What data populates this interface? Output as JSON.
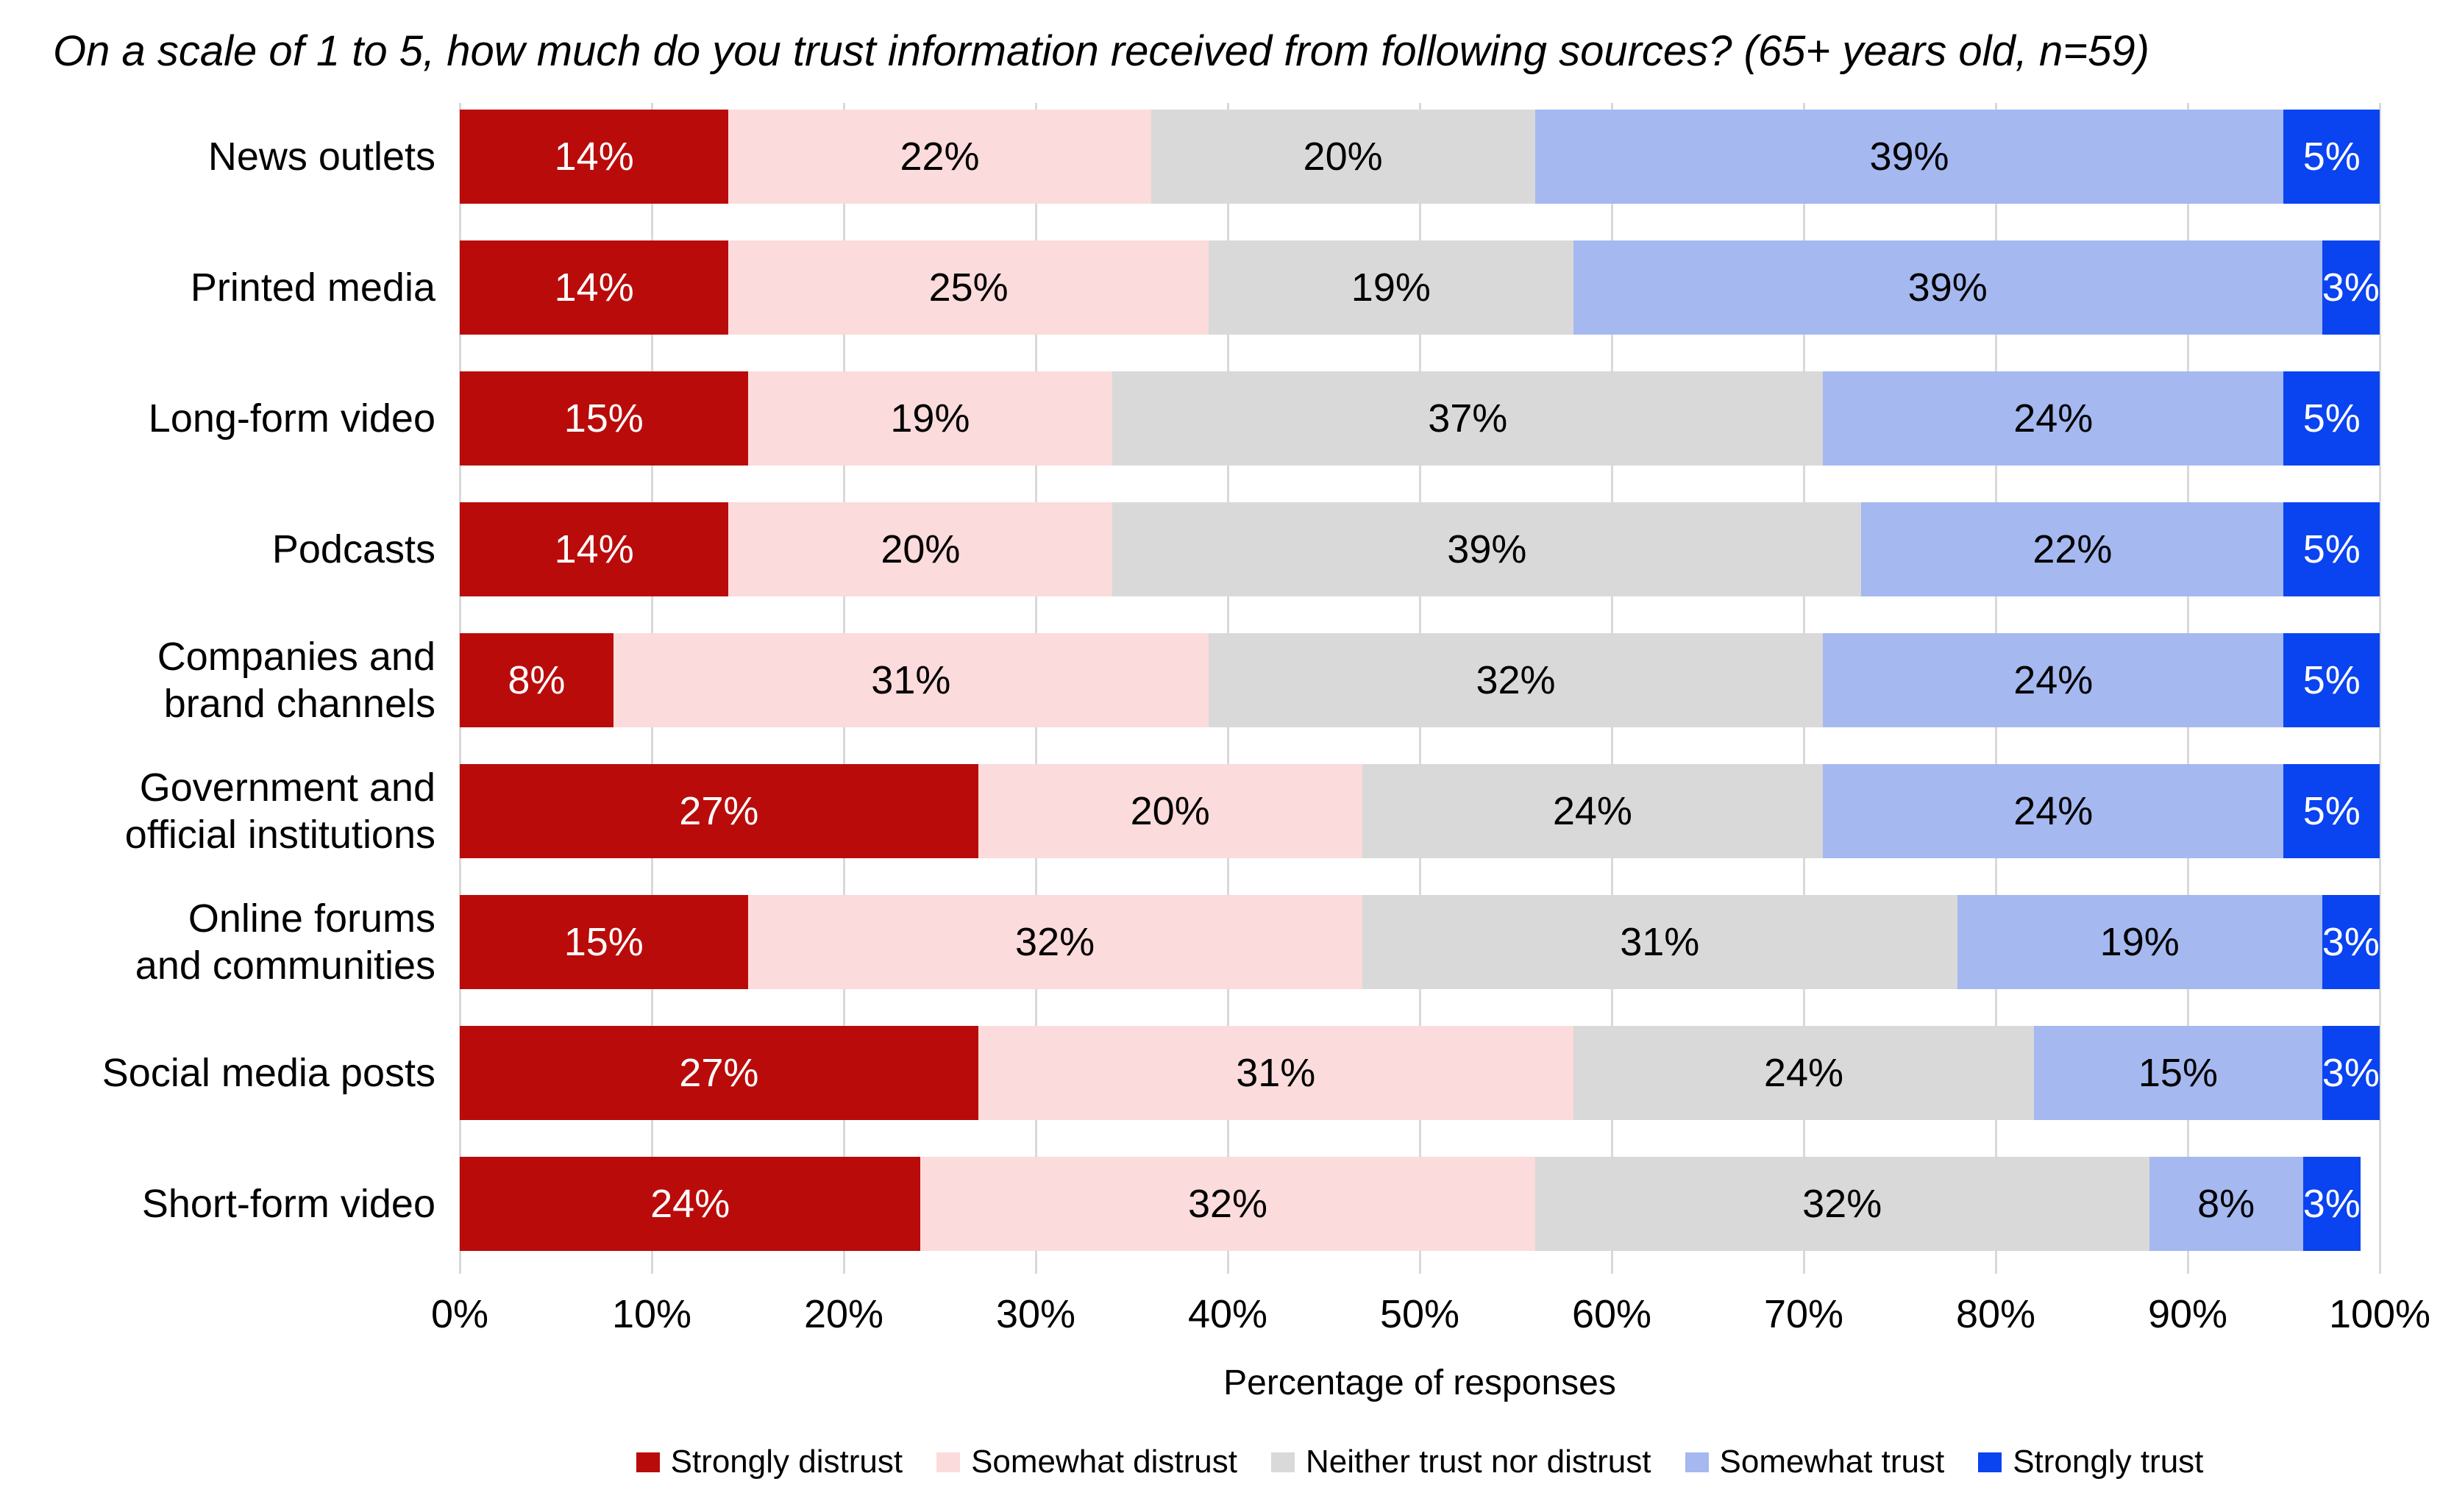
{
  "chart_data": {
    "type": "bar",
    "stacked": true,
    "orientation": "horizontal",
    "title": "On a scale of 1 to 5, how much do you trust information received from following sources? (65+ years old, n=59)",
    "xlabel": "Percentage of responses",
    "value_suffix": "%",
    "xlim": [
      0,
      100
    ],
    "grid": true,
    "legend_position": "bottom",
    "x_ticks": [
      "0%",
      "10%",
      "20%",
      "30%",
      "40%",
      "50%",
      "60%",
      "70%",
      "80%",
      "90%",
      "100%"
    ],
    "categories": [
      "News outlets",
      "Printed media",
      "Long-form video",
      "Podcasts",
      "Companies and brand channels",
      "Government and official institutions",
      "Online forums and communities",
      "Social media posts",
      "Short-form video"
    ],
    "category_label_lines": [
      [
        "News outlets"
      ],
      [
        "Printed media"
      ],
      [
        "Long-form video"
      ],
      [
        "Podcasts"
      ],
      [
        "Companies and",
        "brand channels"
      ],
      [
        "Government and",
        "official institutions"
      ],
      [
        "Online forums",
        "and communities"
      ],
      [
        "Social media posts"
      ],
      [
        "Short-form video"
      ]
    ],
    "series": [
      {
        "name": "Strongly distrust",
        "color": "#ba0b0b",
        "label_color": "#ffffff",
        "values": [
          14,
          14,
          15,
          14,
          8,
          27,
          15,
          27,
          24
        ]
      },
      {
        "name": "Somewhat distrust",
        "color": "#fbdbdb",
        "label_color": "#000000",
        "values": [
          22,
          25,
          19,
          20,
          31,
          20,
          32,
          31,
          32
        ]
      },
      {
        "name": "Neither trust nor distrust",
        "color": "#d9d9d9",
        "label_color": "#000000",
        "values": [
          20,
          19,
          37,
          39,
          32,
          24,
          31,
          24,
          32
        ]
      },
      {
        "name": "Somewhat trust",
        "color": "#a5b8f0",
        "label_color": "#000000",
        "values": [
          39,
          39,
          24,
          22,
          24,
          24,
          19,
          15,
          8
        ]
      },
      {
        "name": "Strongly trust",
        "color": "#0a43f0",
        "label_color": "#ffffff",
        "values": [
          5,
          3,
          5,
          5,
          5,
          5,
          3,
          3,
          3
        ]
      }
    ]
  },
  "style": {
    "background": "#ffffff",
    "gridline_color": "#d9d9d9",
    "text_color": "#000000"
  }
}
